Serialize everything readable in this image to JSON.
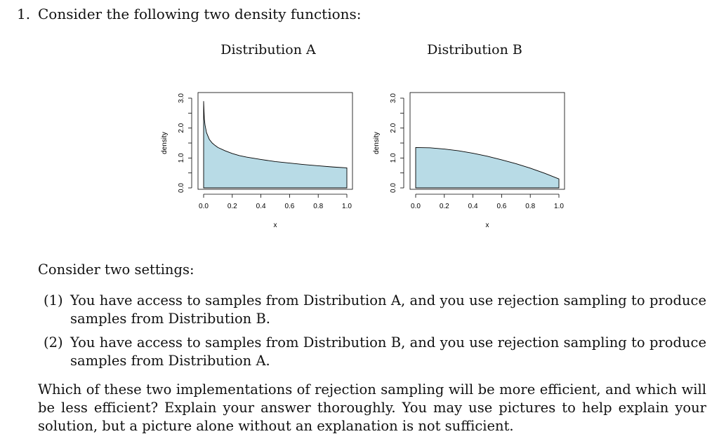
{
  "question": {
    "number": "1.",
    "intro": "Consider the following two density functions:"
  },
  "chart_data": [
    {
      "type": "area",
      "title": "Distribution A",
      "xlabel": "x",
      "ylabel": "density",
      "xlim": [
        0,
        1
      ],
      "ylim": [
        0,
        3
      ],
      "x_ticks": [
        "0.0",
        "0.2",
        "0.4",
        "0.6",
        "0.8",
        "1.0"
      ],
      "y_ticks": [
        "0.0",
        "1.0",
        "2.0",
        "3.0"
      ],
      "fill_color": "#b8dbe6",
      "x": [
        0.0,
        0.005,
        0.01,
        0.02,
        0.04,
        0.06,
        0.08,
        0.1,
        0.15,
        0.2,
        0.25,
        0.3,
        0.4,
        0.5,
        0.6,
        0.7,
        0.8,
        0.9,
        1.0
      ],
      "y": [
        2.9,
        2.3,
        2.1,
        1.85,
        1.62,
        1.5,
        1.42,
        1.35,
        1.24,
        1.15,
        1.08,
        1.03,
        0.95,
        0.88,
        0.83,
        0.78,
        0.74,
        0.7,
        0.67
      ]
    },
    {
      "type": "area",
      "title": "Distribution B",
      "xlabel": "x",
      "ylabel": "density",
      "xlim": [
        0,
        1
      ],
      "ylim": [
        0,
        3
      ],
      "x_ticks": [
        "0.0",
        "0.2",
        "0.4",
        "0.6",
        "0.8",
        "1.0"
      ],
      "y_ticks": [
        "0.0",
        "1.0",
        "2.0",
        "3.0"
      ],
      "fill_color": "#b8dbe6",
      "x": [
        0.0,
        0.1,
        0.2,
        0.3,
        0.4,
        0.5,
        0.6,
        0.7,
        0.8,
        0.9,
        1.0
      ],
      "y": [
        1.35,
        1.34,
        1.3,
        1.24,
        1.16,
        1.06,
        0.94,
        0.81,
        0.66,
        0.49,
        0.3
      ]
    }
  ],
  "settings_intro": "Consider two settings:",
  "items": [
    {
      "num": "(1)",
      "text": "You have access to samples from Distribution A, and you use rejection sampling to produce samples from Distribution B."
    },
    {
      "num": "(2)",
      "text": "You have access to samples from Distribution B, and you use rejection sampling to produce samples from Distribution A."
    }
  ],
  "closing": "Which of these two implementations of rejection sampling will be more efficient, and which will be less efficient? Explain your answer thoroughly. You may use pictures to help explain your solution, but a picture alone without an explanation is not sufficient."
}
